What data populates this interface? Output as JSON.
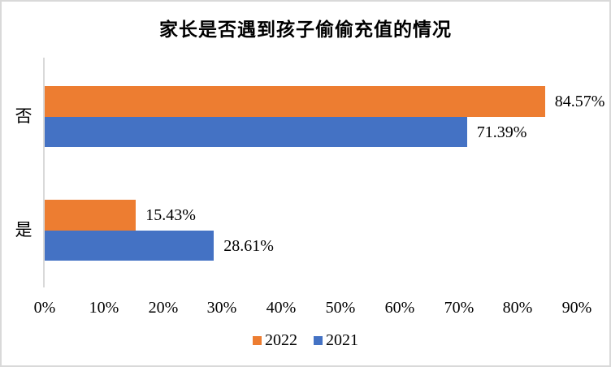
{
  "chart_data": {
    "type": "bar",
    "orientation": "horizontal",
    "title": "家长是否遇到孩子偷偷充值的情况",
    "categories": [
      "否",
      "是"
    ],
    "series": [
      {
        "name": "2022",
        "color": "#ED7D31",
        "values": [
          84.57,
          15.43
        ],
        "labels": [
          "84.57%",
          "15.43%"
        ]
      },
      {
        "name": "2021",
        "color": "#4472C4",
        "values": [
          71.39,
          28.61
        ],
        "labels": [
          "71.39%",
          "28.61%"
        ]
      }
    ],
    "value_axis": {
      "min": 0,
      "max": 90,
      "tick_labels": [
        "0%",
        "10%",
        "20%",
        "30%",
        "40%",
        "50%",
        "60%",
        "70%",
        "80%",
        "90%"
      ]
    },
    "legend": {
      "position": "bottom",
      "entries": [
        "2022",
        "2021"
      ]
    },
    "grid": false,
    "colors": {
      "axis_line": "#D9D9D9",
      "border": "#D9D9D9",
      "background": "#FFFFFF",
      "text": "#000000"
    }
  }
}
